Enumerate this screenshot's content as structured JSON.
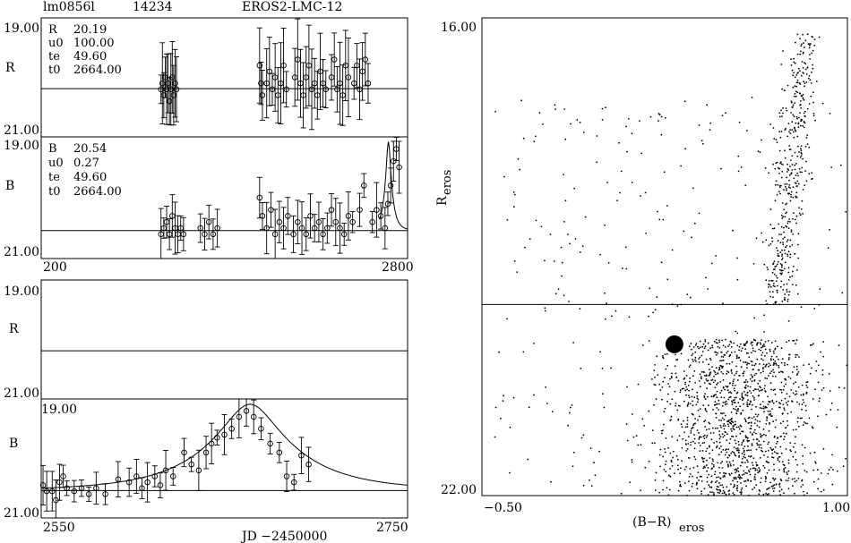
{
  "header": {
    "field": "lm0856l",
    "star_id": "14234",
    "survey": "EROS2-LMC-12"
  },
  "panel_R_full": {
    "band": "R",
    "ytick_top": "19.00",
    "ytick_bottom": "21.00",
    "params": [
      {
        "key": "R",
        "value": "20.19"
      },
      {
        "key": "u0",
        "value": "100.00"
      },
      {
        "key": "te",
        "value": "49.60"
      },
      {
        "key": "t0",
        "value": "2664.00"
      }
    ]
  },
  "panel_B_full": {
    "band": "B",
    "ytick_top": "19.00",
    "ytick_bottom": "21.00",
    "params": [
      {
        "key": "B",
        "value": "20.54"
      },
      {
        "key": "u0",
        "value": "0.27"
      },
      {
        "key": "te",
        "value": "49.60"
      },
      {
        "key": "t0",
        "value": "2664.00"
      }
    ],
    "xtick_left": "200",
    "xtick_right": "2800"
  },
  "panel_R_zoom": {
    "band": "R",
    "ytick_top": "19.00",
    "ytick_bottom": "21.00"
  },
  "panel_B_zoom": {
    "band": "B",
    "ytick_top": "19.00",
    "ytick_bottom": "21.00",
    "xtick_left": "2550",
    "xtick_right": "2750"
  },
  "xaxis_label": "JD −2450000",
  "cmd": {
    "ytick_top": "16.00",
    "ytick_bottom": "22.00",
    "xtick_left": "−0.50",
    "xtick_right": "1.00",
    "ylabel_main": "R",
    "ylabel_sub": "eros",
    "xlabel_main": "(B−R)",
    "xlabel_sub": "eros"
  },
  "chart_data": [
    {
      "type": "scatter",
      "title": "R",
      "xlim": [
        200,
        2800
      ],
      "ylim": [
        21.0,
        19.0
      ],
      "baseline": 20.19,
      "x": [
        1050,
        1060,
        1070,
        1080,
        1090,
        1100,
        1110,
        1120,
        1130,
        1140,
        1150,
        1160,
        1750,
        1760,
        1770,
        1800,
        1820,
        1840,
        1860,
        1880,
        1900,
        1920,
        1940,
        2000,
        2020,
        2040,
        2060,
        2080,
        2100,
        2120,
        2140,
        2160,
        2180,
        2200,
        2220,
        2260,
        2280,
        2300,
        2320,
        2340,
        2360,
        2380,
        2420,
        2440,
        2460,
        2480,
        2500,
        2520
      ],
      "y": [
        20.2,
        20.1,
        20.3,
        20.0,
        20.2,
        20.1,
        20.4,
        20.2,
        20.0,
        20.3,
        20.1,
        20.2,
        19.8,
        20.1,
        20.3,
        20.1,
        19.9,
        20.2,
        20.0,
        20.3,
        20.1,
        19.8,
        20.2,
        20.0,
        19.7,
        20.1,
        20.3,
        20.0,
        19.8,
        20.2,
        20.1,
        20.3,
        19.9,
        20.1,
        20.2,
        20.0,
        19.7,
        20.2,
        20.1,
        20.3,
        19.8,
        20.0,
        20.1,
        19.8,
        20.2,
        19.9,
        19.7,
        20.1
      ]
    },
    {
      "type": "scatter",
      "title": "B",
      "xlim": [
        200,
        2800
      ],
      "ylim": [
        21.0,
        19.0
      ],
      "baseline": 20.54,
      "x": [
        1050,
        1070,
        1090,
        1110,
        1130,
        1150,
        1170,
        1190,
        1210,
        1330,
        1360,
        1390,
        1420,
        1450,
        1750,
        1770,
        1800,
        1830,
        1860,
        1890,
        1920,
        1950,
        1990,
        2020,
        2050,
        2080,
        2110,
        2140,
        2170,
        2200,
        2230,
        2260,
        2290,
        2320,
        2350,
        2380,
        2410,
        2460,
        2490,
        2550,
        2580,
        2610,
        2640,
        2660,
        2680,
        2700,
        2720,
        2740
      ],
      "y": [
        20.6,
        20.5,
        20.4,
        20.6,
        20.3,
        20.5,
        20.6,
        20.5,
        20.6,
        20.5,
        20.6,
        20.4,
        20.6,
        20.5,
        20.0,
        20.3,
        20.5,
        20.2,
        20.6,
        20.4,
        20.5,
        20.3,
        20.6,
        20.4,
        20.5,
        20.6,
        20.3,
        20.5,
        20.4,
        20.6,
        20.5,
        20.2,
        20.4,
        20.5,
        20.6,
        20.3,
        20.4,
        20.2,
        19.8,
        20.4,
        20.2,
        20.3,
        20.5,
        20.1,
        19.8,
        19.4,
        19.2,
        19.5
      ]
    },
    {
      "type": "line",
      "title": "R",
      "xlim": [
        2550,
        2750
      ],
      "ylim": [
        21.0,
        19.0
      ],
      "baseline": 20.19
    },
    {
      "type": "scatter",
      "title": "B",
      "xlim": [
        2550,
        2750
      ],
      "ylim": [
        21.0,
        19.0
      ],
      "baseline": 20.54,
      "x": [
        2551,
        2553,
        2556,
        2558,
        2560,
        2562,
        2564,
        2568,
        2572,
        2576,
        2580,
        2585,
        2592,
        2598,
        2602,
        2605,
        2608,
        2612,
        2615,
        2618,
        2622,
        2628,
        2632,
        2636,
        2640,
        2643,
        2646,
        2650,
        2654,
        2658,
        2662,
        2666,
        2670,
        2675,
        2680,
        2684,
        2688,
        2692,
        2696
      ],
      "y": [
        20.45,
        20.55,
        20.55,
        20.7,
        20.4,
        20.3,
        20.5,
        20.55,
        20.5,
        20.6,
        20.5,
        20.6,
        20.35,
        20.4,
        20.3,
        20.5,
        20.4,
        20.3,
        20.45,
        20.2,
        20.3,
        19.9,
        20.1,
        20.2,
        19.9,
        19.75,
        19.65,
        19.6,
        19.5,
        19.3,
        19.2,
        19.3,
        19.5,
        19.75,
        19.9,
        20.3,
        20.4,
        19.95,
        20.1
      ]
    },
    {
      "type": "scatter",
      "title": "",
      "xlim": [
        -0.5,
        1.0
      ],
      "ylim": [
        22.0,
        16.0
      ],
      "threshold_R": 19.6,
      "highlight": {
        "x": 0.29,
        "y": 20.1
      }
    }
  ]
}
